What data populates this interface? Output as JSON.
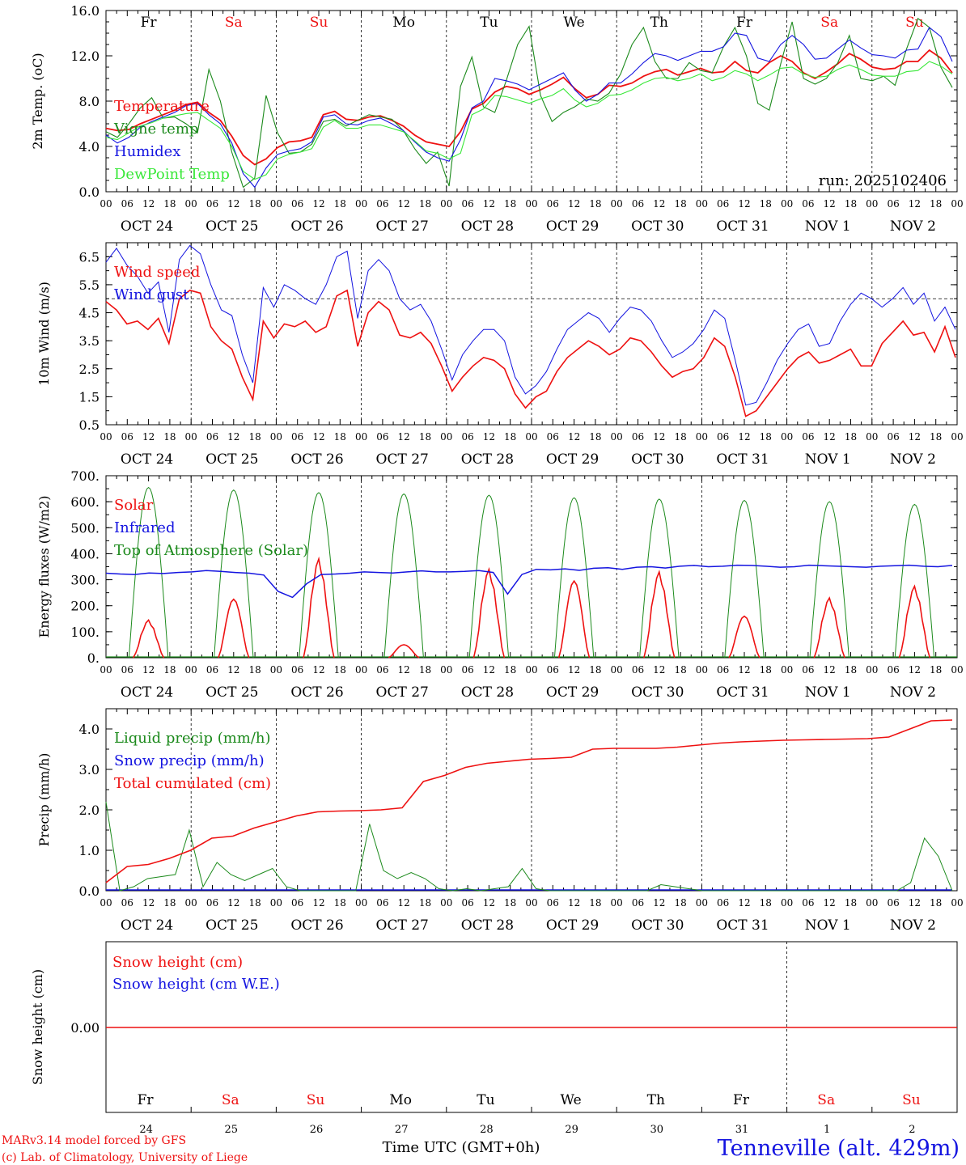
{
  "colors": {
    "red": "#ee1111",
    "darkgreen": "#1c8a1c",
    "blue": "#1414e0",
    "lightgreen": "#38e838",
    "black": "#000000"
  },
  "day_labels": [
    "Fr",
    "Sa",
    "Su",
    "Mo",
    "Tu",
    "We",
    "Th",
    "Fr",
    "Sa",
    "Su"
  ],
  "day_label_colors": [
    "black",
    "red",
    "red",
    "black",
    "black",
    "black",
    "black",
    "black",
    "red",
    "red"
  ],
  "hour_ticks": [
    "00",
    "06",
    "12",
    "18"
  ],
  "final_tick": "00",
  "date_labels": [
    "OCT 24",
    "OCT 25",
    "OCT 26",
    "OCT 27",
    "OCT 28",
    "OCT 29",
    "OCT 30",
    "OCT 31",
    "NOV  1",
    "NOV  2"
  ],
  "day_numbers": [
    "24",
    "25",
    "26",
    "27",
    "28",
    "29",
    "30",
    "31",
    "1",
    "2"
  ],
  "footer": {
    "model": "MARv3.14 model forced by GFS",
    "lab": "(c) Lab. of Climatology, University of Liege",
    "time_label": "Time UTC (GMT+0h)",
    "station": "Tenneville (alt. 429m)"
  },
  "chart_data": [
    {
      "id": "temp",
      "type": "line",
      "ylabel": "2m Temp. (oC)",
      "ylim": [
        0,
        16
      ],
      "yticks": [
        "0.0",
        "4.0",
        "8.0",
        "12.0",
        "16.0"
      ],
      "run": "run: 2025102406",
      "series": [
        {
          "name": "Temperature",
          "color": "red",
          "values": [
            5.6,
            5.4,
            5.5,
            6.0,
            6.4,
            6.8,
            7.2,
            7.7,
            7.9,
            7.0,
            6.3,
            4.9,
            3.2,
            2.4,
            2.9,
            3.9,
            4.4,
            4.5,
            4.8,
            6.8,
            7.1,
            6.4,
            6.3,
            6.6,
            6.7,
            6.3,
            5.8,
            5.0,
            4.4,
            4.2,
            4.0,
            5.3,
            7.3,
            7.8,
            8.8,
            9.3,
            9.1,
            8.6,
            9.0,
            9.5,
            10.1,
            9.1,
            8.3,
            8.6,
            9.4,
            9.3,
            9.6,
            10.2,
            10.6,
            10.8,
            10.3,
            10.6,
            10.9,
            10.5,
            10.6,
            11.5,
            10.7,
            10.5,
            11.4,
            12.0,
            11.5,
            10.5,
            10.0,
            10.6,
            11.3,
            12.2,
            11.7,
            11.0,
            10.8,
            10.9,
            11.5,
            11.5,
            12.5,
            11.8,
            10.5
          ]
        },
        {
          "name": "Vigne temp",
          "color": "darkgreen",
          "values": [
            5.3,
            4.8,
            6.0,
            7.4,
            8.3,
            6.5,
            6.6,
            6.0,
            5.2,
            10.8,
            8.0,
            3.5,
            0.4,
            1.2,
            8.5,
            5.2,
            3.4,
            3.5,
            4.2,
            6.2,
            6.4,
            5.8,
            6.3,
            6.8,
            6.6,
            6.4,
            5.4,
            3.8,
            2.5,
            3.5,
            0.5,
            9.3,
            11.9,
            7.5,
            7.0,
            9.8,
            13.0,
            14.6,
            8.5,
            6.2,
            7.0,
            7.5,
            8.2,
            8.0,
            8.7,
            10.4,
            13.0,
            14.5,
            11.5,
            10.0,
            10.0,
            11.4,
            10.7,
            10.5,
            12.8,
            14.5,
            12.0,
            7.8,
            7.2,
            11.3,
            15.0,
            10.0,
            9.5,
            10.0,
            11.4,
            13.8,
            10.0,
            9.8,
            10.2,
            9.4,
            12.6,
            15.3,
            14.5,
            11.0,
            9.2
          ]
        },
        {
          "name": "Humidex",
          "color": "blue",
          "values": [
            5.0,
            4.3,
            4.8,
            5.7,
            6.2,
            6.6,
            7.0,
            7.6,
            7.8,
            6.8,
            6.0,
            4.3,
            1.6,
            0.4,
            2.1,
            3.3,
            3.6,
            3.8,
            4.4,
            6.6,
            6.8,
            6.0,
            5.9,
            6.3,
            6.5,
            6.0,
            5.4,
            4.4,
            3.5,
            3.0,
            2.7,
            4.6,
            7.4,
            8.0,
            10.0,
            9.8,
            9.5,
            9.0,
            9.5,
            10.0,
            10.5,
            9.0,
            8.0,
            8.6,
            9.6,
            9.6,
            10.4,
            11.4,
            12.2,
            12.0,
            11.6,
            12.0,
            12.4,
            12.4,
            12.8,
            14.0,
            13.8,
            11.8,
            11.5,
            13.0,
            13.8,
            13.0,
            11.7,
            11.8,
            12.6,
            13.4,
            12.7,
            12.1,
            12.0,
            11.8,
            12.5,
            12.6,
            14.5,
            13.7,
            11.5
          ]
        },
        {
          "name": "DewPoint Temp",
          "color": "lightgreen",
          "values": [
            4.8,
            4.6,
            5.2,
            5.8,
            6.1,
            6.5,
            6.7,
            6.9,
            7.0,
            6.3,
            5.6,
            4.0,
            1.8,
            1.1,
            1.5,
            2.9,
            3.3,
            3.5,
            3.8,
            5.7,
            6.3,
            5.6,
            5.6,
            5.9,
            5.9,
            5.6,
            5.3,
            4.5,
            3.6,
            3.4,
            2.9,
            3.4,
            6.8,
            7.3,
            8.5,
            8.4,
            8.1,
            7.8,
            8.2,
            8.5,
            9.1,
            8.1,
            7.5,
            7.8,
            8.5,
            8.6,
            9.0,
            9.6,
            10.0,
            10.1,
            9.8,
            10.0,
            10.4,
            9.8,
            10.1,
            10.7,
            10.4,
            9.8,
            10.3,
            10.9,
            11.0,
            10.4,
            10.1,
            10.2,
            10.8,
            11.2,
            10.8,
            10.3,
            10.2,
            10.2,
            10.6,
            10.7,
            11.5,
            11.1,
            10.4
          ]
        }
      ]
    },
    {
      "id": "wind",
      "type": "line",
      "ylabel": "10m Wind (m/s)",
      "ylim": [
        0.5,
        7.0
      ],
      "yticks": [
        "0.5",
        "1.5",
        "2.5",
        "3.5",
        "4.5",
        "5.5",
        "6.5"
      ],
      "reference_line": 5.0,
      "series": [
        {
          "name": "Wind speed",
          "color": "red",
          "values": [
            4.9,
            4.6,
            4.1,
            4.2,
            3.9,
            4.3,
            3.4,
            5.0,
            5.3,
            5.2,
            4.0,
            3.5,
            3.2,
            2.2,
            1.4,
            4.2,
            3.6,
            4.1,
            4.0,
            4.2,
            3.8,
            4.0,
            5.1,
            5.3,
            3.3,
            4.5,
            4.9,
            4.6,
            3.7,
            3.6,
            3.8,
            3.4,
            2.6,
            1.7,
            2.2,
            2.6,
            2.9,
            2.8,
            2.5,
            1.6,
            1.1,
            1.5,
            1.7,
            2.4,
            2.9,
            3.2,
            3.5,
            3.3,
            3.0,
            3.2,
            3.6,
            3.5,
            3.1,
            2.6,
            2.2,
            2.4,
            2.5,
            2.9,
            3.6,
            3.3,
            2.2,
            0.8,
            1.0,
            1.5,
            2.0,
            2.5,
            2.9,
            3.1,
            2.7,
            2.8,
            3.0,
            3.2,
            2.6,
            2.6,
            3.4,
            3.8,
            4.2,
            3.7,
            3.8,
            3.1,
            4.0,
            2.9
          ]
        },
        {
          "name": "Wind gust",
          "color": "blue",
          "values": [
            6.3,
            6.8,
            6.2,
            5.8,
            5.2,
            5.6,
            3.8,
            6.4,
            6.9,
            6.6,
            5.5,
            4.6,
            4.4,
            3.0,
            2.0,
            5.4,
            4.7,
            5.5,
            5.3,
            5.0,
            4.8,
            5.5,
            6.5,
            6.7,
            4.3,
            6.0,
            6.4,
            6.0,
            5.0,
            4.6,
            4.8,
            4.2,
            3.2,
            2.1,
            3.0,
            3.5,
            3.9,
            3.9,
            3.5,
            2.2,
            1.6,
            1.9,
            2.4,
            3.2,
            3.9,
            4.2,
            4.5,
            4.3,
            3.8,
            4.3,
            4.7,
            4.6,
            4.2,
            3.5,
            2.9,
            3.1,
            3.4,
            3.9,
            4.6,
            4.3,
            2.8,
            1.2,
            1.3,
            2.0,
            2.8,
            3.4,
            3.9,
            4.1,
            3.3,
            3.4,
            4.2,
            4.8,
            5.2,
            5.0,
            4.7,
            5.0,
            5.4,
            4.8,
            5.2,
            4.2,
            4.7,
            3.9
          ]
        }
      ]
    },
    {
      "id": "energy",
      "type": "line",
      "ylabel": "Energy fluxes (W/m2)",
      "ylim": [
        0,
        700
      ],
      "yticks": [
        "0.",
        "100.",
        "200.",
        "300.",
        "400.",
        "500.",
        "600.",
        "700."
      ],
      "series": [
        {
          "name": "Solar",
          "color": "red",
          "day_peaks": [
            145,
            225,
            380,
            50,
            340,
            295,
            330,
            160,
            230,
            275
          ]
        },
        {
          "name": "Infrared",
          "color": "blue",
          "values": [
            325,
            322,
            320,
            326,
            324,
            328,
            330,
            335,
            332,
            328,
            325,
            318,
            255,
            232,
            285,
            320,
            322,
            325,
            330,
            328,
            326,
            330,
            334,
            330,
            330,
            332,
            335,
            328,
            245,
            320,
            340,
            338,
            342,
            336,
            344,
            346,
            340,
            348,
            350,
            345,
            352,
            355,
            350,
            352,
            356,
            355,
            352,
            348,
            350,
            356,
            354,
            352,
            350,
            348,
            352,
            354,
            356,
            352,
            350,
            355
          ]
        },
        {
          "name": "Top of Atmosphere (Solar)",
          "color": "darkgreen",
          "day_peaks": [
            655,
            645,
            635,
            630,
            625,
            615,
            610,
            605,
            600,
            590
          ]
        }
      ]
    },
    {
      "id": "precip",
      "type": "line",
      "ylabel": "Precip (mm/h)",
      "ylim": [
        0,
        4.5
      ],
      "yticks": [
        "0.0",
        "1.0",
        "2.0",
        "3.0",
        "4.0"
      ],
      "series": [
        {
          "name": "Liquid precip (mm/h)",
          "color": "darkgreen",
          "values": [
            2.2,
            0.0,
            0.1,
            0.3,
            0.35,
            0.4,
            1.5,
            0.1,
            0.7,
            0.4,
            0.25,
            0.4,
            0.55,
            0.1,
            0.0,
            0.0,
            0.0,
            0.0,
            0.0,
            1.65,
            0.5,
            0.3,
            0.45,
            0.3,
            0.05,
            0.0,
            0.05,
            0.0,
            0.05,
            0.1,
            0.55,
            0.05,
            0.0,
            0.0,
            0.0,
            0.0,
            0.0,
            0.0,
            0.0,
            0.0,
            0.15,
            0.1,
            0.05,
            0.0,
            0.0,
            0.0,
            0.0,
            0.0,
            0.0,
            0.0,
            0.0,
            0.0,
            0.0,
            0.0,
            0.0,
            0.0,
            0.0,
            0.0,
            0.2,
            1.3,
            0.85,
            0.0
          ]
        },
        {
          "name": "Snow precip (mm/h)",
          "color": "blue",
          "values": [
            0.02,
            0.02,
            0.02,
            0.02,
            0.02,
            0.02,
            0.02,
            0.02,
            0.02,
            0.02,
            0.02,
            0.02,
            0.02,
            0.02,
            0.02,
            0.02,
            0.02,
            0.02,
            0.02,
            0.02
          ]
        },
        {
          "name": "Total cumulated (cm)",
          "color": "red",
          "values": [
            0.2,
            0.6,
            0.65,
            0.8,
            1.0,
            1.3,
            1.35,
            1.55,
            1.7,
            1.85,
            1.95,
            1.97,
            1.98,
            2.0,
            2.05,
            2.7,
            2.85,
            3.05,
            3.15,
            3.2,
            3.25,
            3.27,
            3.3,
            3.5,
            3.52,
            3.52,
            3.52,
            3.55,
            3.6,
            3.65,
            3.68,
            3.7,
            3.72,
            3.73,
            3.74,
            3.75,
            3.76,
            3.8,
            4.0,
            4.2,
            4.22
          ]
        }
      ]
    },
    {
      "id": "snow",
      "type": "line",
      "ylabel": "Snow height (cm)",
      "ytick": "0.00",
      "series": [
        {
          "name": "Snow height (cm)",
          "color": "red",
          "values": [
            0,
            0
          ]
        },
        {
          "name": "Snow height (cm W.E.)",
          "color": "blue",
          "values": [
            0,
            0
          ]
        }
      ]
    }
  ]
}
